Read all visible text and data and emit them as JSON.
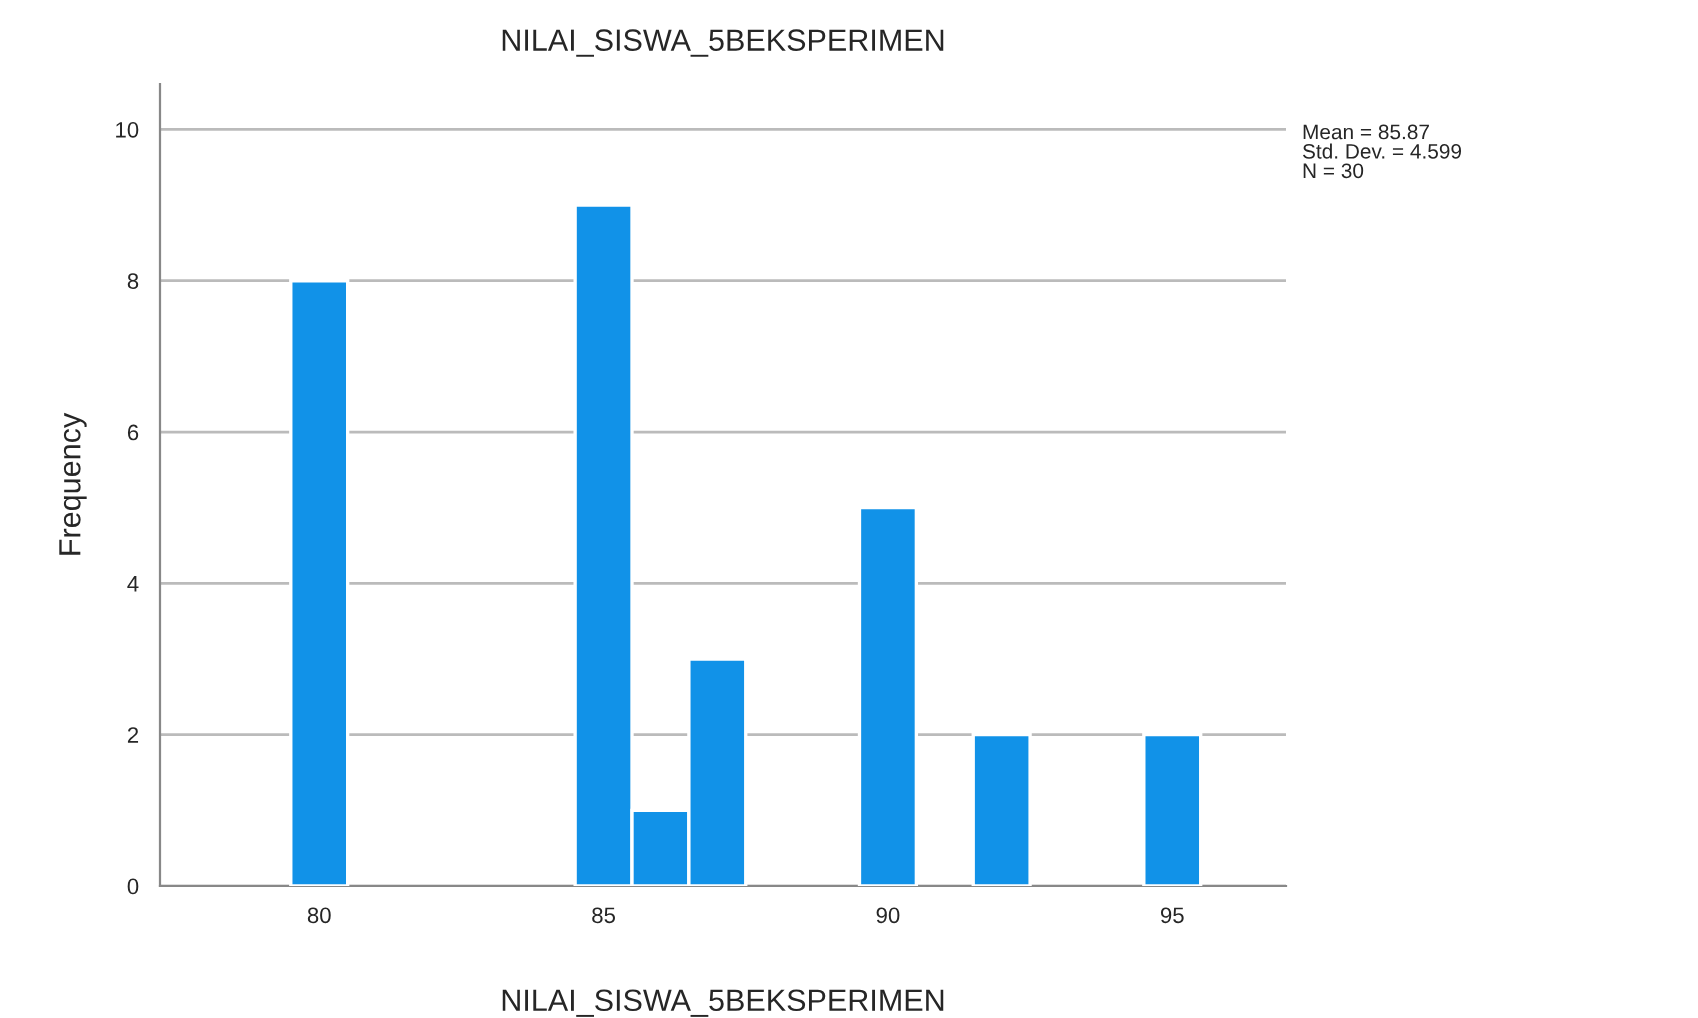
{
  "chart_data": {
    "type": "histogram",
    "title": "NILAI_SISWA_5BEKSPERIMEN",
    "xlabel": "NILAI_SISWA_5BEKSPERIMEN",
    "ylabel": "Frequency",
    "bins": [
      79.5,
      80.5,
      81.5,
      82.5,
      83.5,
      84.5,
      85.5,
      86.5,
      87.5,
      88.5,
      89.5,
      90.5,
      91.5,
      92.5,
      93.5,
      94.5,
      95.5
    ],
    "values": [
      8,
      0,
      0,
      0,
      0,
      9,
      1,
      3,
      0,
      0,
      5,
      0,
      2,
      0,
      0,
      2
    ],
    "color": "#1192e8",
    "xlim": [
      77.2,
      97.0
    ],
    "xticks": [
      80,
      85,
      90,
      95
    ],
    "ylim": [
      0,
      10.6
    ],
    "yticks": [
      0,
      2,
      4,
      6,
      8,
      10
    ],
    "grid": "y",
    "annotations": [
      "Mean = 85.87\nStd. Dev. = 4.599\nN = 30"
    ]
  }
}
